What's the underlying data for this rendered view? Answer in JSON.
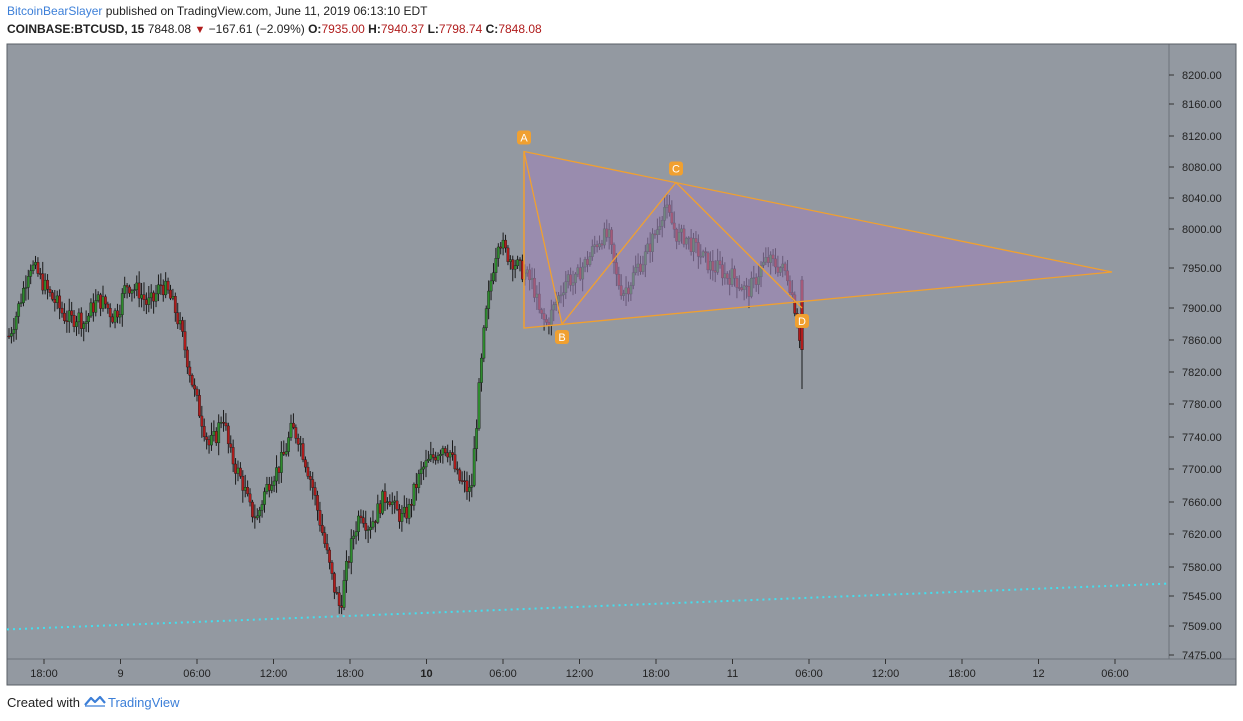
{
  "header": {
    "author": "BitcoinBearSlayer",
    "published_text": "published on TradingView.com, June 11, 2019 06:13:10 EDT",
    "symbol": "COINBASE:BTCUSD, 15",
    "price": "7848.08",
    "change": "−167.61 (−2.09%)",
    "o_label": "O:",
    "o_value": "7935.00",
    "h_label": "H:",
    "h_value": "7940.37",
    "l_label": "L:",
    "l_value": "7798.74",
    "c_label": "C:",
    "c_value": "7848.08"
  },
  "footer": {
    "created_with": "Created with",
    "brand": "TradingView"
  },
  "colors": {
    "plot_bg": "#9399a1",
    "up_candle": "#2e8b2e",
    "down_candle": "#b01c1c",
    "pattern_line": "#f0a030",
    "pattern_fill": "#9c84b8",
    "support_line": "#40e0f0"
  },
  "chart_data": {
    "type": "candlestick",
    "y_ticks": [
      "8200.00",
      "8160.00",
      "8120.00",
      "8080.00",
      "8040.00",
      "8000.00",
      "7950.00",
      "7900.00",
      "7860.00",
      "7820.00",
      "7780.00",
      "7740.00",
      "7700.00",
      "7660.00",
      "7620.00",
      "7580.00",
      "7545.00",
      "7509.00",
      "7475.00"
    ],
    "x_ticks": [
      "18:00",
      "9",
      "06:00",
      "12:00",
      "18:00",
      "10",
      "06:00",
      "12:00",
      "18:00",
      "11",
      "06:00",
      "12:00",
      "18:00",
      "12",
      "06:00"
    ],
    "x_ticks_bold": [
      "10"
    ],
    "ylim": [
      7475,
      8230
    ],
    "price_path": [
      7865,
      7890,
      7920,
      7955,
      7945,
      7930,
      7915,
      7905,
      7890,
      7885,
      7890,
      7880,
      7900,
      7910,
      7905,
      7890,
      7900,
      7930,
      7925,
      7920,
      7905,
      7910,
      7930,
      7920,
      7900,
      7870,
      7830,
      7790,
      7760,
      7730,
      7740,
      7770,
      7720,
      7700,
      7680,
      7650,
      7640,
      7670,
      7690,
      7700,
      7720,
      7750,
      7740,
      7710,
      7680,
      7640,
      7600,
      7560,
      7530,
      7580,
      7620,
      7650,
      7630,
      7640,
      7660,
      7670,
      7650,
      7640,
      7650,
      7680,
      7700,
      7710,
      7720,
      7730,
      7720,
      7690,
      7680,
      7670,
      7780,
      7880,
      7940,
      7990,
      7970,
      7960,
      7950,
      7940,
      7930,
      7890,
      7880,
      7900,
      7920,
      7940,
      7930,
      7950,
      7960,
      7980,
      7990,
      7990,
      7940,
      7920,
      7930,
      7950,
      7960,
      7980,
      8000,
      8030,
      8010,
      7990,
      7990,
      7980,
      7970,
      7960,
      7950,
      7950,
      7940,
      7940,
      7930,
      7920,
      7930,
      7950,
      7960,
      7955,
      7950,
      7940,
      7900,
      7848
    ],
    "candles_down_index_from": 115,
    "pattern": {
      "name": "triangle ABCD",
      "points": [
        {
          "label": "A",
          "time": "Jun 10 09:15",
          "price": 8100
        },
        {
          "label": "B",
          "time": "Jun 10 11:30",
          "price": 7880
        },
        {
          "label": "C",
          "time": "Jun 10 19:30",
          "price": 8060
        },
        {
          "label": "D",
          "time": "Jun 11 06:00",
          "price": 7900
        }
      ],
      "apex": {
        "time": "Jun 12 06:00",
        "price": 7945
      }
    },
    "support_line": {
      "style": "dotted",
      "start_price": 7505,
      "end_price": 7560
    }
  }
}
